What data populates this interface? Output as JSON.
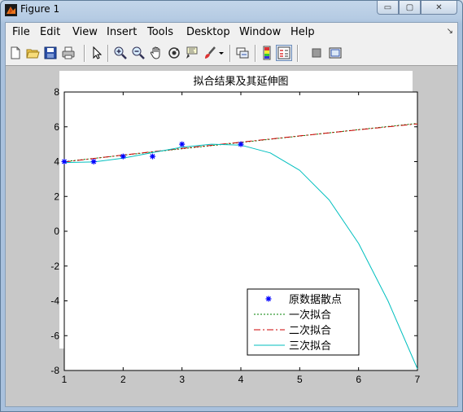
{
  "window": {
    "title": "Figure 1",
    "minimize": "▭",
    "maximize": "▢",
    "close": "✕"
  },
  "menu": {
    "items": [
      "File",
      "Edit",
      "View",
      "Insert",
      "Tools",
      "Desktop",
      "Window",
      "Help"
    ],
    "overflow": "↘"
  },
  "toolbar": {
    "icons": [
      "new-figure-icon",
      "open-file-icon",
      "save-icon",
      "print-icon",
      "edit-plot-icon",
      "zoom-in-icon",
      "zoom-out-icon",
      "pan-icon",
      "rotate-3d-icon",
      "data-cursor-icon",
      "brush-icon",
      "brush-dropdown-icon",
      "link-plot-icon",
      "colorbar-icon",
      "legend-icon",
      "hide-plot-tools-icon",
      "show-plot-tools-icon"
    ]
  },
  "colors": {
    "data": "#0000ff",
    "quadratic": "#008000",
    "quad_dashdot": "#cc0000",
    "cubic": "#00bfbf"
  },
  "chart_data": {
    "type": "line",
    "title": "拟合结果及其延伸图",
    "xlabel": "",
    "ylabel": "",
    "xlim": [
      1,
      7
    ],
    "ylim": [
      -8,
      8
    ],
    "xticks": [
      1,
      2,
      3,
      4,
      5,
      6,
      7
    ],
    "yticks": [
      -8,
      -6,
      -4,
      -2,
      0,
      2,
      4,
      6,
      8
    ],
    "grid": false,
    "legend_position": "bottom-right",
    "points": {
      "name": "原数据散点",
      "x": [
        1,
        1.5,
        2,
        2.5,
        3,
        4
      ],
      "y": [
        4.0,
        4.0,
        4.3,
        4.3,
        5.0,
        5.0
      ]
    },
    "series": [
      {
        "name": "一次拟合",
        "style": "dotted",
        "x": [
          1,
          2,
          3,
          4,
          5,
          6,
          7
        ],
        "y": [
          4.0,
          4.37,
          4.74,
          5.1,
          5.47,
          5.84,
          6.2
        ]
      },
      {
        "name": "二次拟合",
        "style": "dashdot",
        "x": [
          1,
          2,
          3,
          4,
          5,
          6,
          7
        ],
        "y": [
          3.98,
          4.38,
          4.76,
          5.12,
          5.48,
          5.83,
          6.17
        ]
      },
      {
        "name": "三次拟合",
        "style": "solid",
        "x": [
          1,
          1.5,
          2,
          2.5,
          3,
          3.5,
          4,
          4.5,
          5,
          5.5,
          6,
          6.5,
          7
        ],
        "y": [
          3.95,
          3.98,
          4.2,
          4.52,
          4.83,
          5.0,
          4.95,
          4.5,
          3.5,
          1.8,
          -0.7,
          -4.0,
          -7.9
        ]
      }
    ]
  }
}
